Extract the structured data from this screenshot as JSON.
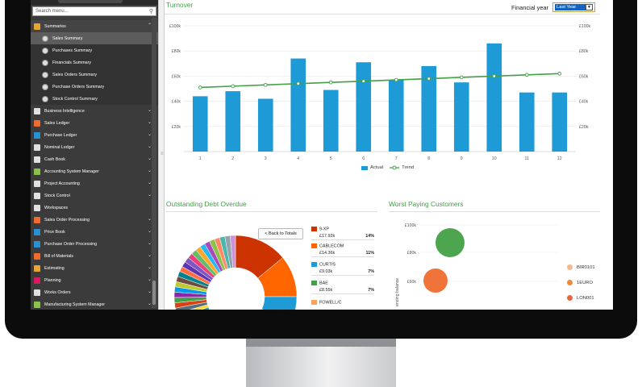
{
  "sidebar": {
    "search_placeholder": "Search menu...",
    "items": [
      {
        "label": "Summaries",
        "color": "#e8a531",
        "level": "top",
        "chev": "⌃"
      },
      {
        "label": "Sales Summary",
        "level": "sub",
        "active": true
      },
      {
        "label": "Purchases Summary",
        "level": "sub"
      },
      {
        "label": "Financials Summary",
        "level": "sub"
      },
      {
        "label": "Sales Orders Summary",
        "level": "sub"
      },
      {
        "label": "Purchase Orders Summary",
        "level": "sub"
      },
      {
        "label": "Stock Control Summary",
        "level": "sub"
      },
      {
        "label": "Business Intelligence",
        "color": "#e0e0e0",
        "level": "top",
        "chev": "⌄"
      },
      {
        "label": "Sales Ledger",
        "color": "#ef6c2e",
        "level": "top",
        "chev": "⌄"
      },
      {
        "label": "Purchase Ledger",
        "color": "#2b8fd6",
        "level": "top",
        "chev": "⌄"
      },
      {
        "label": "Nominal Ledger",
        "color": "#e0e0e0",
        "level": "top",
        "chev": "⌄"
      },
      {
        "label": "Cash Book",
        "color": "#e0e0e0",
        "level": "top",
        "chev": "⌄"
      },
      {
        "label": "Accounting System Manager",
        "color": "#8bc34a",
        "level": "top",
        "chev": "⌄"
      },
      {
        "label": "Project Accounting",
        "color": "#e0e0e0",
        "level": "top",
        "chev": "⌄"
      },
      {
        "label": "Stock Control",
        "color": "#e0e0e0",
        "level": "top",
        "chev": "⌄"
      },
      {
        "label": "Workspaces",
        "color": "#e0e0e0",
        "level": "top",
        "chev": ""
      },
      {
        "label": "Sales Order Processing",
        "color": "#ef6c2e",
        "level": "top",
        "chev": "⌄"
      },
      {
        "label": "Price Book",
        "color": "#2b8fd6",
        "level": "top",
        "chev": "⌄"
      },
      {
        "label": "Purchase Order Processing",
        "color": "#2b8fd6",
        "level": "top",
        "chev": "⌄"
      },
      {
        "label": "Bill of Materials",
        "color": "#ef6c2e",
        "level": "top",
        "chev": "⌄"
      },
      {
        "label": "Estimating",
        "color": "#e8a531",
        "level": "top",
        "chev": "⌄"
      },
      {
        "label": "Planning",
        "color": "#d81b60",
        "level": "top",
        "chev": "⌄"
      },
      {
        "label": "Works Orders",
        "color": "#e0e0e0",
        "level": "top",
        "chev": "⌄"
      },
      {
        "label": "Manufacturing System Manager",
        "color": "#8bc34a",
        "level": "top",
        "chev": "⌄"
      }
    ]
  },
  "turnover": {
    "title": "Turnover",
    "fy_label": "Financial year",
    "fy_value": "Last Year",
    "legend": {
      "actual": "Actual",
      "trend": "Trend"
    }
  },
  "chart_data": {
    "type": "bar",
    "categories": [
      "1",
      "2",
      "3",
      "4",
      "5",
      "6",
      "7",
      "8",
      "9",
      "10",
      "11",
      "12"
    ],
    "series": [
      {
        "name": "Actual",
        "type": "bar",
        "color": "#1e9bd7",
        "values": [
          44000,
          48000,
          42000,
          74000,
          49000,
          71000,
          57000,
          68000,
          55000,
          86000,
          47000,
          47000
        ]
      },
      {
        "name": "Trend",
        "type": "line",
        "color": "#43a047",
        "values": [
          51000,
          52000,
          53000,
          54000,
          55000,
          56000,
          57000,
          58000,
          59000,
          60000,
          61000,
          62000
        ]
      }
    ],
    "yticks": [
      "£100k",
      "£80k",
      "£60k",
      "£40k",
      "£20k"
    ],
    "ylim": [
      0,
      100000
    ]
  },
  "debt": {
    "title": "Outstanding Debt Overdue",
    "back_label": "< Back to Totals",
    "entries": [
      {
        "name": "9-XP",
        "amount": "£17.92k",
        "pct": "14%",
        "color": "#cc3300"
      },
      {
        "name": "CABLECOM",
        "amount": "£14.36k",
        "pct": "11%",
        "color": "#ff6600"
      },
      {
        "name": "CURTIS",
        "amount": "£9.03k",
        "pct": "7%",
        "color": "#1e9bd7"
      },
      {
        "name": "BAE",
        "amount": "£8.55k",
        "pct": "7%",
        "color": "#43a047"
      },
      {
        "name": "FOWELL/C",
        "amount": "",
        "pct": "",
        "color": "#f4a460"
      }
    ]
  },
  "worst": {
    "title": "Worst Paying Customers",
    "yticks": [
      "£100k",
      "£80k",
      "£60k"
    ],
    "ylabel": "ending balance",
    "legend": [
      {
        "name": "BIR0101",
        "color": "#f5b98a"
      },
      {
        "name": "1EURO",
        "color": "#ef8a3a"
      },
      {
        "name": "LON001",
        "color": "#e8663a"
      }
    ]
  }
}
